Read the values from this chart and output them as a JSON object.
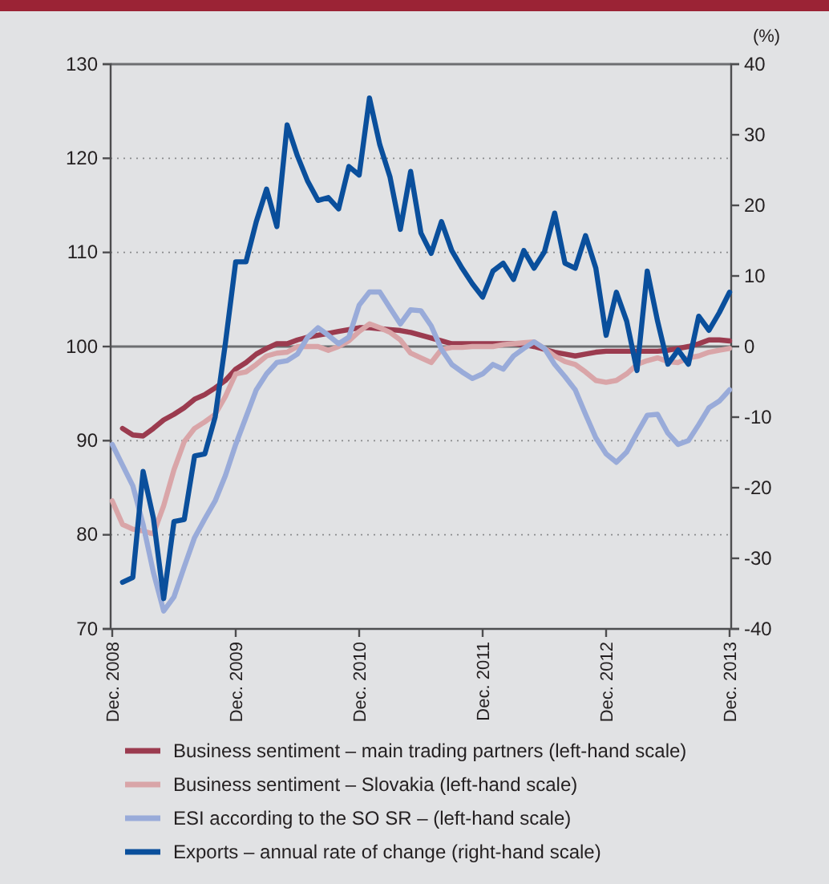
{
  "chart_data": {
    "type": "line",
    "y2label": "(%)",
    "categories": [
      "Dec. 2008",
      null,
      null,
      null,
      null,
      null,
      null,
      null,
      null,
      null,
      null,
      null,
      "Dec. 2009",
      null,
      null,
      null,
      null,
      null,
      null,
      null,
      null,
      null,
      null,
      null,
      "Dec. 2010",
      null,
      null,
      null,
      null,
      null,
      null,
      null,
      null,
      null,
      null,
      null,
      "Dec. 2011",
      null,
      null,
      null,
      null,
      null,
      null,
      null,
      null,
      null,
      null,
      null,
      "Dec. 2012",
      null,
      null,
      null,
      null,
      null,
      null,
      null,
      null,
      null,
      null,
      null,
      "Dec. 2013"
    ],
    "ylim": [
      70,
      130
    ],
    "yticks": [
      70,
      80,
      90,
      100,
      110,
      120,
      130
    ],
    "y2lim": [
      -40,
      40
    ],
    "y2ticks": [
      -40,
      -30,
      -20,
      -10,
      0,
      10,
      20,
      30,
      40
    ],
    "grid": "y",
    "legend": "bottom",
    "line_style": "solid",
    "marker": "none",
    "ref_lines": [
      {
        "axis": "y",
        "value": 100,
        "color": "#6d6e71"
      }
    ],
    "series": [
      {
        "name": "Business sentiment – main trading partners (left-hand scale)",
        "color": "#9b3b4f",
        "values": [
          null,
          91.3,
          90.6,
          90.5,
          91.3,
          92.2,
          92.8,
          93.5,
          94.4,
          94.9,
          95.6,
          96.4,
          97.6,
          98.3,
          99.2,
          99.8,
          100.3,
          100.3,
          100.7,
          101,
          101.2,
          101.4,
          101.6,
          101.8,
          102,
          102,
          101.9,
          101.8,
          101.7,
          101.5,
          101.2,
          100.9,
          100.6,
          100.3,
          100.3,
          100.3,
          100.3,
          100.3,
          100.3,
          100.3,
          100.2,
          100,
          99.7,
          99.4,
          99.2,
          99,
          99.2,
          99.4,
          99.5,
          99.5,
          99.5,
          99.5,
          99.5,
          99.5,
          99.6,
          99.8,
          100,
          100.3,
          100.7,
          100.7,
          100.6
        ]
      },
      {
        "name": "Business sentiment – Slovakia (left-hand scale)",
        "color": "#d9a5a8",
        "values": [
          83.6,
          81.1,
          80.6,
          80.4,
          80.1,
          83.1,
          86.9,
          89.9,
          91.3,
          92,
          92.8,
          94.7,
          97.1,
          97.3,
          98.1,
          99,
          99.3,
          99.4,
          100,
          100,
          100,
          99.6,
          100,
          100.6,
          101.6,
          102.4,
          102,
          101.5,
          100.7,
          99.3,
          98.8,
          98.3,
          99.7,
          99.9,
          99.9,
          100,
          100,
          100,
          100.2,
          100.3,
          100.4,
          100.5,
          99.8,
          99,
          98.4,
          98.1,
          97.3,
          96.4,
          96.2,
          96.4,
          97.1,
          98.1,
          98.5,
          98.8,
          98.4,
          98.3,
          98.8,
          99,
          99.4,
          99.6,
          99.8
        ]
      },
      {
        "name": "ESI according to the SO SR – (left-hand scale)",
        "color": "#99abd9",
        "values": [
          89.6,
          87.4,
          85.2,
          81.1,
          76,
          71.9,
          73.4,
          76.6,
          79.7,
          81.7,
          83.6,
          86.3,
          89.6,
          92.5,
          95.4,
          97.1,
          98.3,
          98.5,
          99.2,
          101,
          102,
          101.2,
          100.3,
          101,
          104.4,
          105.8,
          105.8,
          104.1,
          102.4,
          103.9,
          103.8,
          102.2,
          99.7,
          98.1,
          97.3,
          96.6,
          97.1,
          98.1,
          97.6,
          99,
          99.8,
          100.5,
          99.8,
          98.1,
          96.8,
          95.4,
          92.8,
          90.3,
          88.6,
          87.7,
          88.8,
          90.8,
          92.7,
          92.8,
          90.8,
          89.6,
          90,
          91.7,
          93.5,
          94.2,
          95.4
        ]
      },
      {
        "name": "Exports – annual rate of change (right-hand scale)",
        "color": "#0a4f9c",
        "axis": "y2",
        "values": [
          null,
          -33.4,
          -32.7,
          -17.7,
          -24.3,
          -35.7,
          -24.8,
          -24.5,
          -15.5,
          -15.2,
          -10,
          0.5,
          12,
          12,
          17.7,
          22.3,
          17,
          31.4,
          27,
          23.4,
          20.7,
          21.1,
          19.5,
          25.5,
          24.3,
          35.2,
          28.6,
          24,
          16.6,
          24.8,
          16.1,
          13.2,
          17.7,
          13.6,
          11.1,
          8.9,
          7,
          10.7,
          11.8,
          9.5,
          13.6,
          11.1,
          13.4,
          18.9,
          11.8,
          11.1,
          15.7,
          11.1,
          1.6,
          7.7,
          3.6,
          -3.4,
          10.7,
          3.6,
          -2.5,
          -0.5,
          -2.5,
          4.3,
          2.3,
          4.8,
          7.7
        ]
      }
    ]
  }
}
